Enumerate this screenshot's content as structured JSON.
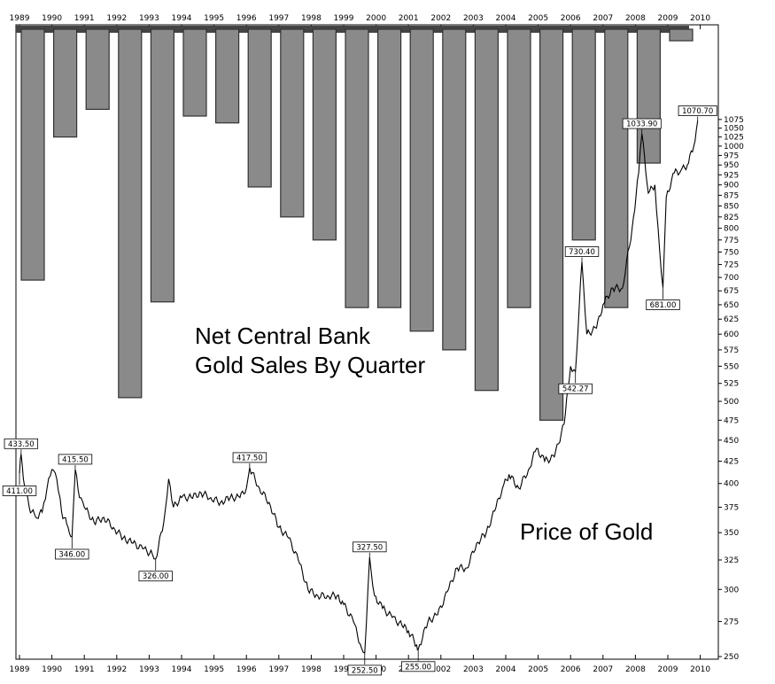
{
  "chart_data": {
    "type": "bar+candlestick",
    "x_years": [
      "1989",
      "1990",
      "1991",
      "1992",
      "1993",
      "1994",
      "1995",
      "1996",
      "1997",
      "1998",
      "1999",
      "2000",
      "2001",
      "2002",
      "2003",
      "2004",
      "2005",
      "2006",
      "2007",
      "2008",
      "2009",
      "2010"
    ],
    "bars": {
      "title": "Net Central Bank Gold Sales By Quarter",
      "categories": [
        "1989",
        "1990",
        "1991",
        "1992",
        "1993",
        "1994",
        "1995",
        "1996",
        "1997",
        "1998",
        "1999",
        "2000",
        "2001",
        "2002",
        "2003",
        "2004",
        "2005",
        "2006",
        "2007",
        "2008",
        "2009"
      ],
      "values": [
        695,
        1025,
        1105,
        505,
        655,
        1085,
        1065,
        895,
        825,
        775,
        645,
        645,
        605,
        575,
        515,
        645,
        475,
        775,
        645,
        955,
        8
      ],
      "color": "#8a8a8a"
    },
    "price": {
      "title": "Price of Gold",
      "y_ticks": [
        250,
        275,
        300,
        325,
        350,
        375,
        400,
        425,
        450,
        475,
        500,
        525,
        550,
        575,
        600,
        625,
        650,
        675,
        700,
        725,
        750,
        775,
        800,
        825,
        850,
        875,
        900,
        925,
        950,
        975,
        1000,
        1025,
        1050,
        1075
      ],
      "y_range": [
        240,
        1085
      ],
      "scale": "log",
      "series": [
        [
          1989.0,
          411
        ],
        [
          1989.05,
          433.5
        ],
        [
          1989.12,
          405
        ],
        [
          1989.3,
          375
        ],
        [
          1989.5,
          365
        ],
        [
          1989.7,
          370
        ],
        [
          1989.85,
          395
        ],
        [
          1990.0,
          415.5
        ],
        [
          1990.15,
          405
        ],
        [
          1990.3,
          370
        ],
        [
          1990.5,
          355
        ],
        [
          1990.62,
          346
        ],
        [
          1990.72,
          415.5
        ],
        [
          1990.85,
          385
        ],
        [
          1991.0,
          375
        ],
        [
          1991.3,
          360
        ],
        [
          1991.6,
          365
        ],
        [
          1991.9,
          355
        ],
        [
          1992.2,
          345
        ],
        [
          1992.5,
          340
        ],
        [
          1992.8,
          335
        ],
        [
          1993.1,
          330
        ],
        [
          1993.2,
          326
        ],
        [
          1993.45,
          360
        ],
        [
          1993.6,
          405
        ],
        [
          1993.75,
          375
        ],
        [
          1994.0,
          385
        ],
        [
          1994.3,
          385
        ],
        [
          1994.6,
          390
        ],
        [
          1994.9,
          385
        ],
        [
          1995.2,
          380
        ],
        [
          1995.5,
          385
        ],
        [
          1995.8,
          385
        ],
        [
          1996.0,
          395
        ],
        [
          1996.1,
          417.5
        ],
        [
          1996.4,
          395
        ],
        [
          1996.7,
          380
        ],
        [
          1997.0,
          355
        ],
        [
          1997.3,
          345
        ],
        [
          1997.6,
          325
        ],
        [
          1997.9,
          300
        ],
        [
          1998.2,
          295
        ],
        [
          1998.5,
          295
        ],
        [
          1998.8,
          295
        ],
        [
          1999.0,
          288
        ],
        [
          1999.3,
          275
        ],
        [
          1999.55,
          256
        ],
        [
          1999.65,
          252.5
        ],
        [
          1999.8,
          327.5
        ],
        [
          1999.95,
          295
        ],
        [
          2000.2,
          285
        ],
        [
          2000.5,
          278
        ],
        [
          2000.8,
          272
        ],
        [
          2001.0,
          268
        ],
        [
          2001.25,
          258
        ],
        [
          2001.3,
          255
        ],
        [
          2001.6,
          275
        ],
        [
          2001.9,
          280
        ],
        [
          2002.2,
          298
        ],
        [
          2002.5,
          318
        ],
        [
          2002.8,
          318
        ],
        [
          2003.1,
          340
        ],
        [
          2003.4,
          350
        ],
        [
          2003.7,
          375
        ],
        [
          2003.9,
          395
        ],
        [
          2004.1,
          410
        ],
        [
          2004.4,
          395
        ],
        [
          2004.7,
          415
        ],
        [
          2004.95,
          440
        ],
        [
          2005.2,
          425
        ],
        [
          2005.5,
          430
        ],
        [
          2005.8,
          470
        ],
        [
          2006.0,
          550
        ],
        [
          2006.15,
          542.27
        ],
        [
          2006.35,
          730.4
        ],
        [
          2006.5,
          600
        ],
        [
          2006.8,
          610
        ],
        [
          2007.0,
          650
        ],
        [
          2007.3,
          680
        ],
        [
          2007.6,
          680
        ],
        [
          2007.9,
          800
        ],
        [
          2008.1,
          930
        ],
        [
          2008.2,
          1033.9
        ],
        [
          2008.4,
          880
        ],
        [
          2008.6,
          900
        ],
        [
          2008.75,
          750
        ],
        [
          2008.85,
          681
        ],
        [
          2008.95,
          870
        ],
        [
          2009.2,
          930
        ],
        [
          2009.4,
          935
        ],
        [
          2009.6,
          950
        ],
        [
          2009.8,
          1000
        ],
        [
          2009.92,
          1070.7
        ]
      ],
      "labels": [
        {
          "x": 1989.05,
          "y": 433.5,
          "text": "433.50"
        },
        {
          "x": 1989.0,
          "y": 411,
          "text": "411.00"
        },
        {
          "x": 1990.72,
          "y": 415.5,
          "text": "415.50"
        },
        {
          "x": 1990.62,
          "y": 346,
          "text": "346.00"
        },
        {
          "x": 1993.2,
          "y": 326,
          "text": "326.00"
        },
        {
          "x": 1996.1,
          "y": 417.5,
          "text": "417.50"
        },
        {
          "x": 1999.8,
          "y": 327.5,
          "text": "327.50"
        },
        {
          "x": 1999.65,
          "y": 252.5,
          "text": "252.50"
        },
        {
          "x": 2001.3,
          "y": 255,
          "text": "255.00"
        },
        {
          "x": 2006.15,
          "y": 542.27,
          "text": "542.27"
        },
        {
          "x": 2006.35,
          "y": 730.4,
          "text": "730.40"
        },
        {
          "x": 2008.2,
          "y": 1033.9,
          "text": "1033.90"
        },
        {
          "x": 2008.85,
          "y": 681,
          "text": "681.00"
        },
        {
          "x": 2009.92,
          "y": 1070.7,
          "text": "1070.70"
        }
      ]
    },
    "grid": false,
    "legend": "none"
  }
}
